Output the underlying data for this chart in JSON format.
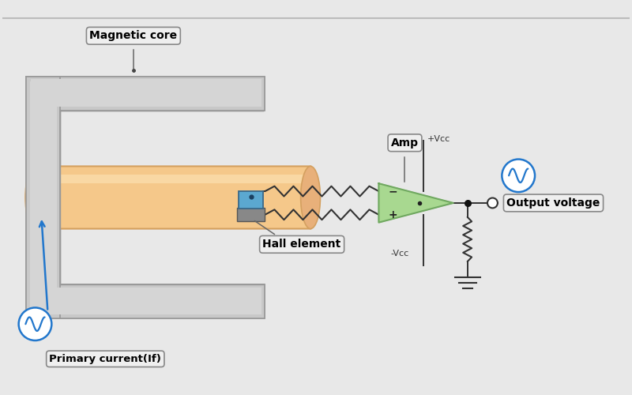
{
  "bg_color": "#e8e8e8",
  "inner_bg": "#ffffff",
  "core_outer": "#c8c8c8",
  "core_mid": "#b8b8b8",
  "core_inner": "#d5d5d5",
  "conductor_fill": "#f5c88a",
  "conductor_edge": "#d4a060",
  "conductor_end": "#e8b07a",
  "hall_blue": "#5ba8d0",
  "hall_dark": "#3a6888",
  "hall_base": "#909090",
  "amp_green": "#a8d890",
  "amp_edge": "#70a860",
  "wire_color": "#333333",
  "signal_blue": "#2277cc",
  "label_bg": "#efefef",
  "label_border": "#888888",
  "dot_color": "#111111",
  "texts": {
    "magnetic_core": "Magnetic core",
    "hall_element": "Hall element",
    "primary_current": "Primary current(If)",
    "amp": "Amp",
    "plus_vcc": "+Vcc",
    "minus_vcc": "-Vcc",
    "output_voltage": "Output voltage"
  },
  "figsize": [
    8.0,
    5.0
  ],
  "dpi": 100,
  "xlim": [
    0,
    8
  ],
  "ylim": [
    0,
    5
  ]
}
